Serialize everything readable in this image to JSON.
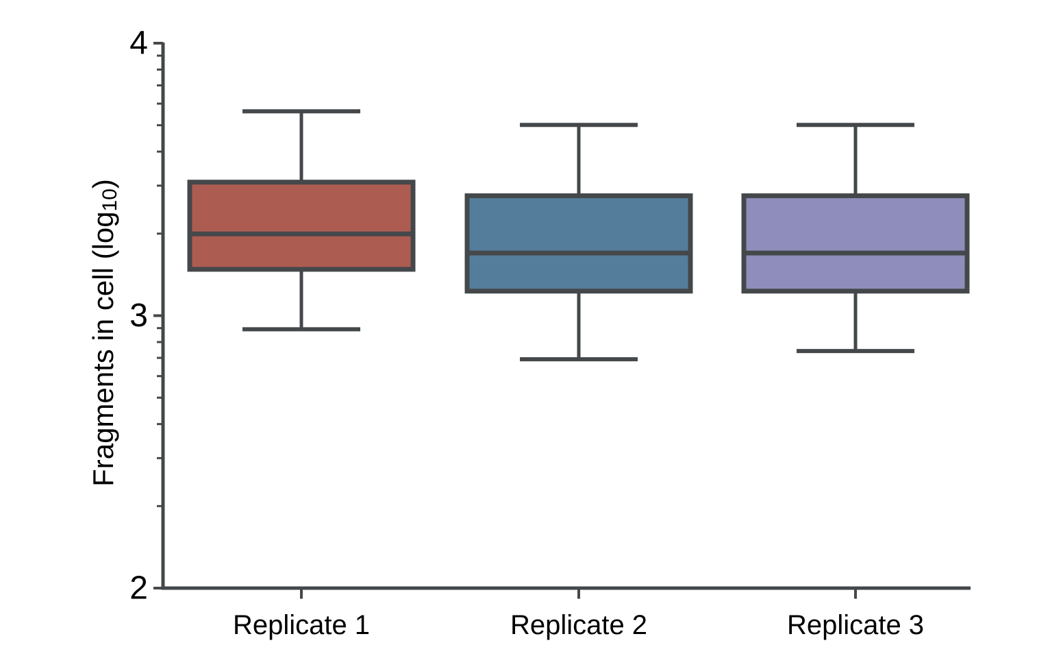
{
  "figure": {
    "background": "#ffffff",
    "stroke_color": "#45484b",
    "text_color": "#000000"
  },
  "chart_data": {
    "type": "box",
    "title": "",
    "xlabel": "",
    "ylabel": {
      "text": "Fragments in cell (log10)",
      "prefix": "Fragments in cell (log",
      "subscript": "10",
      "suffix": ")"
    },
    "ylim": [
      2,
      4
    ],
    "y_scale": "log10-exponent axis with log-spaced minor ticks (2-9 per decade)",
    "yticks": [
      {
        "value": 4,
        "label": "4"
      },
      {
        "value": 3,
        "label": "3"
      },
      {
        "value": 2,
        "label": "2"
      }
    ],
    "grid": false,
    "legend": "none",
    "categories": [
      "Replicate 1",
      "Replicate 2",
      "Replicate 3"
    ],
    "series": [
      {
        "name": "Replicate 1",
        "color": "#ad5c52",
        "whisker_low": 2.95,
        "q1": 3.17,
        "median": 3.3,
        "q3": 3.49,
        "whisker_high": 3.75
      },
      {
        "name": "Replicate 2",
        "color": "#547d9b",
        "whisker_low": 2.84,
        "q1": 3.09,
        "median": 3.23,
        "q3": 3.44,
        "whisker_high": 3.7
      },
      {
        "name": "Replicate 3",
        "color": "#8e8dbb",
        "whisker_low": 2.87,
        "q1": 3.09,
        "median": 3.23,
        "q3": 3.44,
        "whisker_high": 3.7
      }
    ]
  }
}
